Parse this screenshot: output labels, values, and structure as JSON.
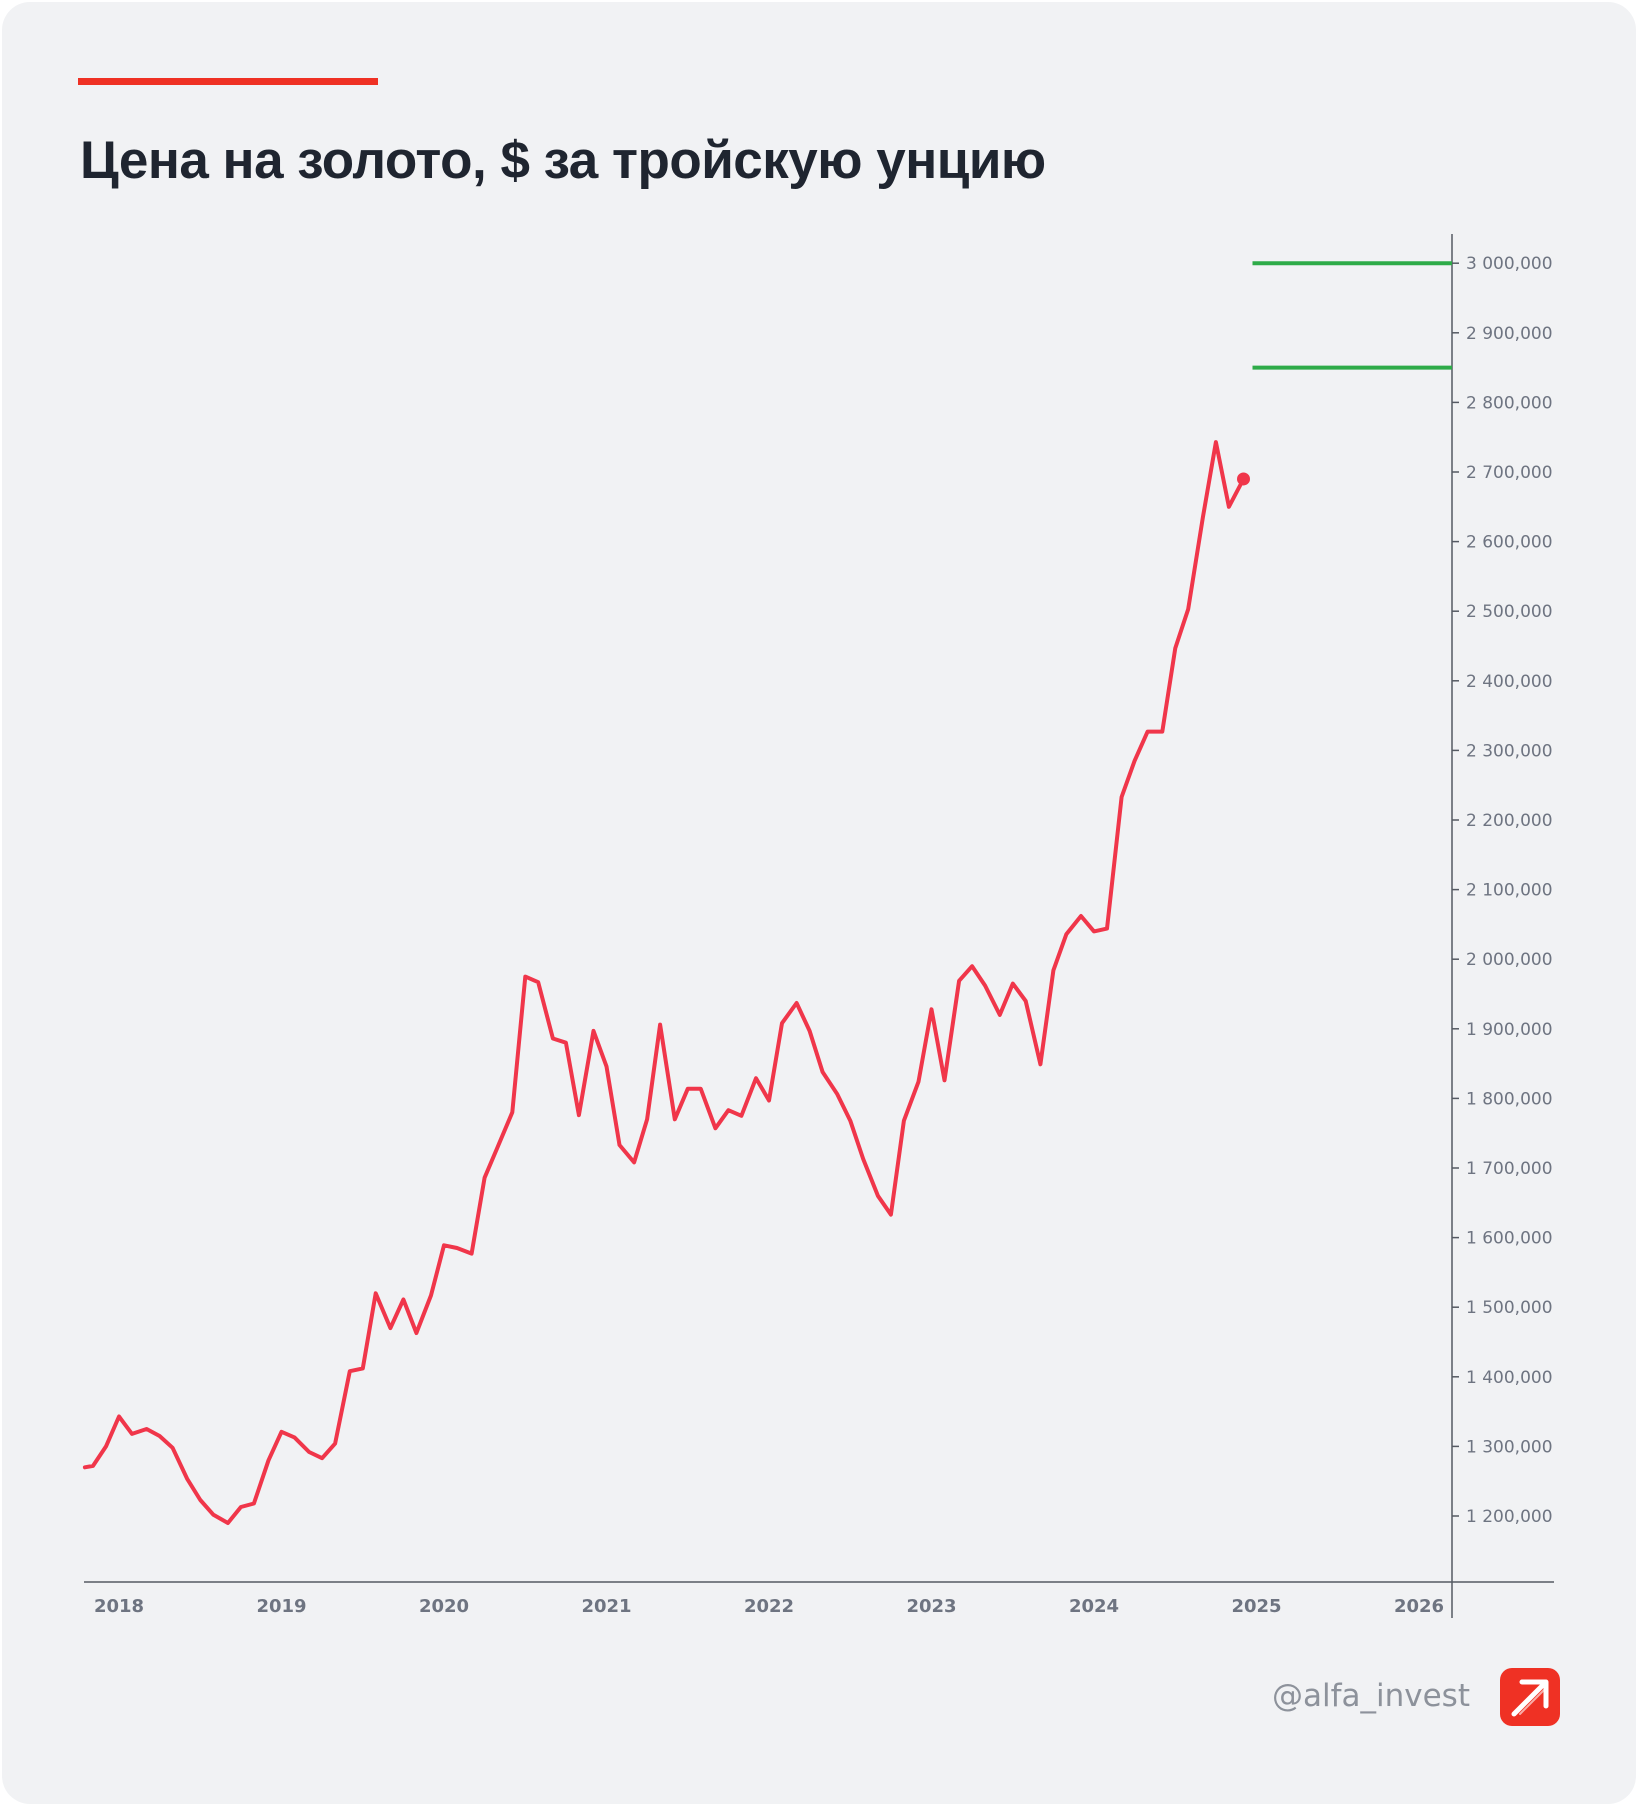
{
  "header": {
    "title": "Цена на золото, $ за тройскую унцию"
  },
  "footer": {
    "handle": "@alfa_invest",
    "logo_icon": "alfa-arrow-logo-icon"
  },
  "colors": {
    "accent": "#ef3124",
    "series": "#f0364a",
    "reference_lines": "#2eab48",
    "axis": "#555a63",
    "text_dark": "#1f2530",
    "text_muted": "#6e7481",
    "background": "#f1f2f4"
  },
  "chart_data": {
    "type": "line",
    "title": "Цена на золото, $ за тройскую унцию",
    "xlabel": "",
    "ylabel": "",
    "xlim": [
      2017.8,
      2027.0
    ],
    "ylim": [
      1110,
      3030
    ],
    "x_ticks": [
      {
        "value": 2018,
        "label": "2018"
      },
      {
        "value": 2019,
        "label": "2019"
      },
      {
        "value": 2020,
        "label": "2020"
      },
      {
        "value": 2021,
        "label": "2021"
      },
      {
        "value": 2022,
        "label": "2022"
      },
      {
        "value": 2023,
        "label": "2023"
      },
      {
        "value": 2024,
        "label": "2024"
      },
      {
        "value": 2025,
        "label": "2025"
      },
      {
        "value": 2026,
        "label": "2026"
      }
    ],
    "y_ticks": [
      {
        "value": 1200,
        "label": "1 200,000"
      },
      {
        "value": 1300,
        "label": "1 300,000"
      },
      {
        "value": 1400,
        "label": "1 400,000"
      },
      {
        "value": 1500,
        "label": "1 500,000"
      },
      {
        "value": 1600,
        "label": "1 600,000"
      },
      {
        "value": 1700,
        "label": "1 700,000"
      },
      {
        "value": 1800,
        "label": "1 800,000"
      },
      {
        "value": 1900,
        "label": "1 900,000"
      },
      {
        "value": 2000,
        "label": "2 000,000"
      },
      {
        "value": 2100,
        "label": "2 100,000"
      },
      {
        "value": 2200,
        "label": "2 200,000"
      },
      {
        "value": 2300,
        "label": "2 300,000"
      },
      {
        "value": 2400,
        "label": "2 400,000"
      },
      {
        "value": 2500,
        "label": "2 500,000"
      },
      {
        "value": 2600,
        "label": "2 600,000"
      },
      {
        "value": 2700,
        "label": "2 700,000"
      },
      {
        "value": 2800,
        "label": "2 800,000"
      },
      {
        "value": 2900,
        "label": "2 900,000"
      },
      {
        "value": 3000,
        "label": "3 000,000"
      }
    ],
    "y_axis_position": "right",
    "grid": false,
    "legend": "none",
    "series": [
      {
        "x": [
          2017.79,
          2017.84,
          2017.92,
          2018.0,
          2018.08,
          2018.17,
          2018.25,
          2018.33,
          2018.42,
          2018.5,
          2018.58,
          2018.67,
          2018.75,
          2018.83,
          2018.92,
          2019.0,
          2019.08,
          2019.17,
          2019.25,
          2019.33,
          2019.42,
          2019.5,
          2019.58,
          2019.67,
          2019.75,
          2019.83,
          2019.92,
          2020.0,
          2020.08,
          2020.17,
          2020.25,
          2020.33,
          2020.42,
          2020.5,
          2020.58,
          2020.67,
          2020.75,
          2020.83,
          2020.92,
          2021.0,
          2021.08,
          2021.17,
          2021.25,
          2021.33,
          2021.42,
          2021.5,
          2021.58,
          2021.67,
          2021.75,
          2021.83,
          2021.92,
          2022.0,
          2022.08,
          2022.17,
          2022.25,
          2022.33,
          2022.42,
          2022.5,
          2022.58,
          2022.67,
          2022.75,
          2022.83,
          2022.92,
          2023.0,
          2023.08,
          2023.17,
          2023.25,
          2023.33,
          2023.42,
          2023.5,
          2023.58,
          2023.67,
          2023.75,
          2023.83,
          2023.92,
          2024.0,
          2024.08,
          2024.17,
          2024.25,
          2024.33,
          2024.42,
          2024.5,
          2024.58,
          2024.67,
          2024.75,
          2024.83,
          2024.92
        ],
        "values": [
          1270,
          1272,
          1300,
          1343,
          1318,
          1325,
          1315,
          1298,
          1253,
          1223,
          1202,
          1190,
          1213,
          1218,
          1280,
          1321,
          1313,
          1292,
          1283,
          1304,
          1408,
          1412,
          1520,
          1470,
          1511,
          1463,
          1517,
          1589,
          1585,
          1577,
          1686,
          1730,
          1780,
          1975,
          1967,
          1886,
          1880,
          1776,
          1897,
          1846,
          1733,
          1708,
          1770,
          1906,
          1770,
          1814,
          1814,
          1757,
          1783,
          1775,
          1829,
          1797,
          1908,
          1937,
          1897,
          1838,
          1806,
          1768,
          1713,
          1660,
          1633,
          1768,
          1824,
          1928,
          1826,
          1969,
          1990,
          1962,
          1920,
          1965,
          1940,
          1849,
          1984,
          2036,
          2062,
          2040,
          2044,
          2233,
          2285,
          2327,
          2327,
          2447,
          2503,
          2635,
          2743,
          2650,
          2690
        ]
      }
    ],
    "last_point_marker": {
      "x": 2024.92,
      "value": 2690
    },
    "reference_lines": [
      {
        "value": 3000,
        "x_start": 2024.92
      },
      {
        "value": 2850,
        "x_start": 2024.92
      }
    ]
  }
}
